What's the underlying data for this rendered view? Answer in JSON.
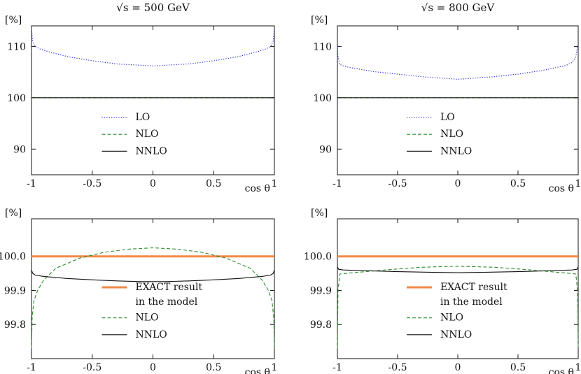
{
  "chart_data": [
    {
      "type": "line",
      "title": "√s = 500 GeV",
      "xlabel": "cos θ",
      "ylabel": "[%]",
      "xlim": [
        -1,
        1
      ],
      "ylim": [
        85,
        114
      ],
      "xticks": [
        -1,
        -0.5,
        0,
        0.5,
        1
      ],
      "xtick_labels": [
        "-1",
        "-0.5",
        "0",
        "0.5",
        "1"
      ],
      "yticks": [
        90,
        100,
        110
      ],
      "ytick_labels": [
        "90",
        "100",
        "110"
      ],
      "legend": [
        "LO",
        "NLO",
        "NNLO"
      ],
      "series": [
        {
          "name": "LO",
          "style": "dotted",
          "color": "#2b2bd6",
          "x": [
            -1,
            -0.99,
            -0.97,
            -0.93,
            -0.85,
            -0.7,
            -0.5,
            -0.3,
            0,
            0.3,
            0.5,
            0.7,
            0.85,
            0.93,
            0.97,
            0.99,
            1
          ],
          "y": [
            113.5,
            111,
            110,
            109.5,
            108.9,
            108,
            107.2,
            106.6,
            106.2,
            106.6,
            107.2,
            108,
            108.9,
            109.5,
            110,
            111,
            113.5
          ]
        },
        {
          "name": "NLO",
          "style": "dashed",
          "color": "#2e8b2e",
          "x": [
            -1,
            1
          ],
          "y": [
            100,
            100
          ]
        },
        {
          "name": "NNLO",
          "style": "solid",
          "color": "#111111",
          "x": [
            -1,
            1
          ],
          "y": [
            100,
            100
          ]
        }
      ]
    },
    {
      "type": "line",
      "title": "√s = 800 GeV",
      "xlabel": "cos θ",
      "ylabel": "[%]",
      "xlim": [
        -1,
        1
      ],
      "ylim": [
        85,
        114
      ],
      "xticks": [
        -1,
        -0.5,
        0,
        0.5,
        1
      ],
      "xtick_labels": [
        "-1",
        "-0.5",
        "0",
        "0.5",
        "1"
      ],
      "yticks": [
        90,
        100,
        110
      ],
      "ytick_labels": [
        "90",
        "100",
        "110"
      ],
      "legend": [
        "LO",
        "NLO",
        "NNLO"
      ],
      "series": [
        {
          "name": "LO",
          "style": "dotted",
          "color": "#2b2bd6",
          "x": [
            -1,
            -0.995,
            -0.98,
            -0.95,
            -0.9,
            -0.7,
            -0.5,
            -0.3,
            0,
            0.3,
            0.5,
            0.7,
            0.9,
            0.95,
            0.98,
            0.995,
            1
          ],
          "y": [
            110,
            108,
            106.5,
            106.2,
            105.9,
            105.1,
            104.6,
            104.1,
            103.6,
            104.1,
            104.6,
            105.3,
            106.3,
            106.9,
            108,
            110,
            110
          ]
        },
        {
          "name": "NLO",
          "style": "dashed",
          "color": "#2e8b2e",
          "x": [
            -1,
            1
          ],
          "y": [
            100,
            100
          ]
        },
        {
          "name": "NNLO",
          "style": "solid",
          "color": "#111111",
          "x": [
            -1,
            1
          ],
          "y": [
            100,
            100
          ]
        }
      ]
    },
    {
      "type": "line",
      "title": "",
      "xlabel": "cos θ",
      "ylabel": "[%]",
      "xlim": [
        -1,
        1
      ],
      "ylim": [
        99.7,
        100.11
      ],
      "xticks": [
        -1,
        -0.5,
        0,
        0.5,
        1
      ],
      "xtick_labels": [
        "-1",
        "-0.5",
        "0",
        "0.5",
        "1"
      ],
      "yticks": [
        99.8,
        99.9,
        100.0
      ],
      "ytick_labels": [
        "99.8",
        "99.9",
        "100.0"
      ],
      "legend": [
        "EXACT result",
        "in the model",
        "NLO",
        "NNLO"
      ],
      "series": [
        {
          "name": "EXACT result in the model",
          "style": "thick",
          "color": "#f28a46",
          "x": [
            -1,
            1
          ],
          "y": [
            100,
            100
          ]
        },
        {
          "name": "NLO",
          "style": "dashed",
          "color": "#2e8b2e",
          "x": [
            -1,
            -0.995,
            -0.98,
            -0.95,
            -0.9,
            -0.8,
            -0.6,
            -0.4,
            -0.2,
            0,
            0.2,
            0.4,
            0.6,
            0.8,
            0.9,
            0.95,
            0.98,
            0.995,
            1
          ],
          "y": [
            99.73,
            99.82,
            99.87,
            99.9,
            99.93,
            99.965,
            99.995,
            100.012,
            100.021,
            100.025,
            100.021,
            100.012,
            99.995,
            99.965,
            99.93,
            99.9,
            99.87,
            99.82,
            99.73
          ]
        },
        {
          "name": "NNLO",
          "style": "solid",
          "color": "#111111",
          "x": [
            -1,
            -0.99,
            -0.97,
            -0.9,
            -0.7,
            -0.5,
            -0.3,
            -0.1,
            0.1,
            0.3,
            0.5,
            0.7,
            0.9,
            0.97,
            0.99,
            1
          ],
          "y": [
            99.96,
            99.95,
            99.945,
            99.941,
            99.935,
            99.931,
            99.928,
            99.926,
            99.926,
            99.928,
            99.931,
            99.935,
            99.941,
            99.945,
            99.95,
            99.96
          ]
        }
      ]
    },
    {
      "type": "line",
      "title": "",
      "xlabel": "cos θ",
      "ylabel": "[%]",
      "xlim": [
        -1,
        1
      ],
      "ylim": [
        99.7,
        100.11
      ],
      "xticks": [
        -1,
        -0.5,
        0,
        0.5,
        1
      ],
      "xtick_labels": [
        "-1",
        "-0.5",
        "0",
        "0.5",
        "1"
      ],
      "yticks": [
        99.8,
        99.9,
        100.0
      ],
      "ytick_labels": [
        "99.8",
        "99.9",
        "100.0"
      ],
      "legend": [
        "EXACT result",
        "in the model",
        "NLO",
        "NNLO"
      ],
      "series": [
        {
          "name": "EXACT result in the model",
          "style": "thick",
          "color": "#f28a46",
          "x": [
            -1,
            1
          ],
          "y": [
            100,
            100
          ]
        },
        {
          "name": "NLO",
          "style": "dashed",
          "color": "#2e8b2e",
          "x": [
            -1,
            -0.995,
            -0.98,
            -0.9,
            -0.7,
            -0.5,
            -0.3,
            0,
            0.3,
            0.5,
            0.7,
            0.9,
            0.98,
            0.995,
            1
          ],
          "y": [
            99.73,
            99.9,
            99.948,
            99.951,
            99.957,
            99.963,
            99.968,
            99.971,
            99.968,
            99.963,
            99.957,
            99.951,
            99.948,
            99.9,
            99.73
          ]
        },
        {
          "name": "NNLO",
          "style": "solid",
          "color": "#111111",
          "x": [
            -1,
            -0.99,
            -0.95,
            -0.8,
            -0.5,
            -0.2,
            0,
            0.2,
            0.5,
            0.8,
            0.95,
            0.99,
            1
          ],
          "y": [
            99.97,
            99.962,
            99.96,
            99.958,
            99.955,
            99.953,
            99.952,
            99.953,
            99.955,
            99.958,
            99.96,
            99.962,
            99.97
          ]
        }
      ]
    }
  ]
}
